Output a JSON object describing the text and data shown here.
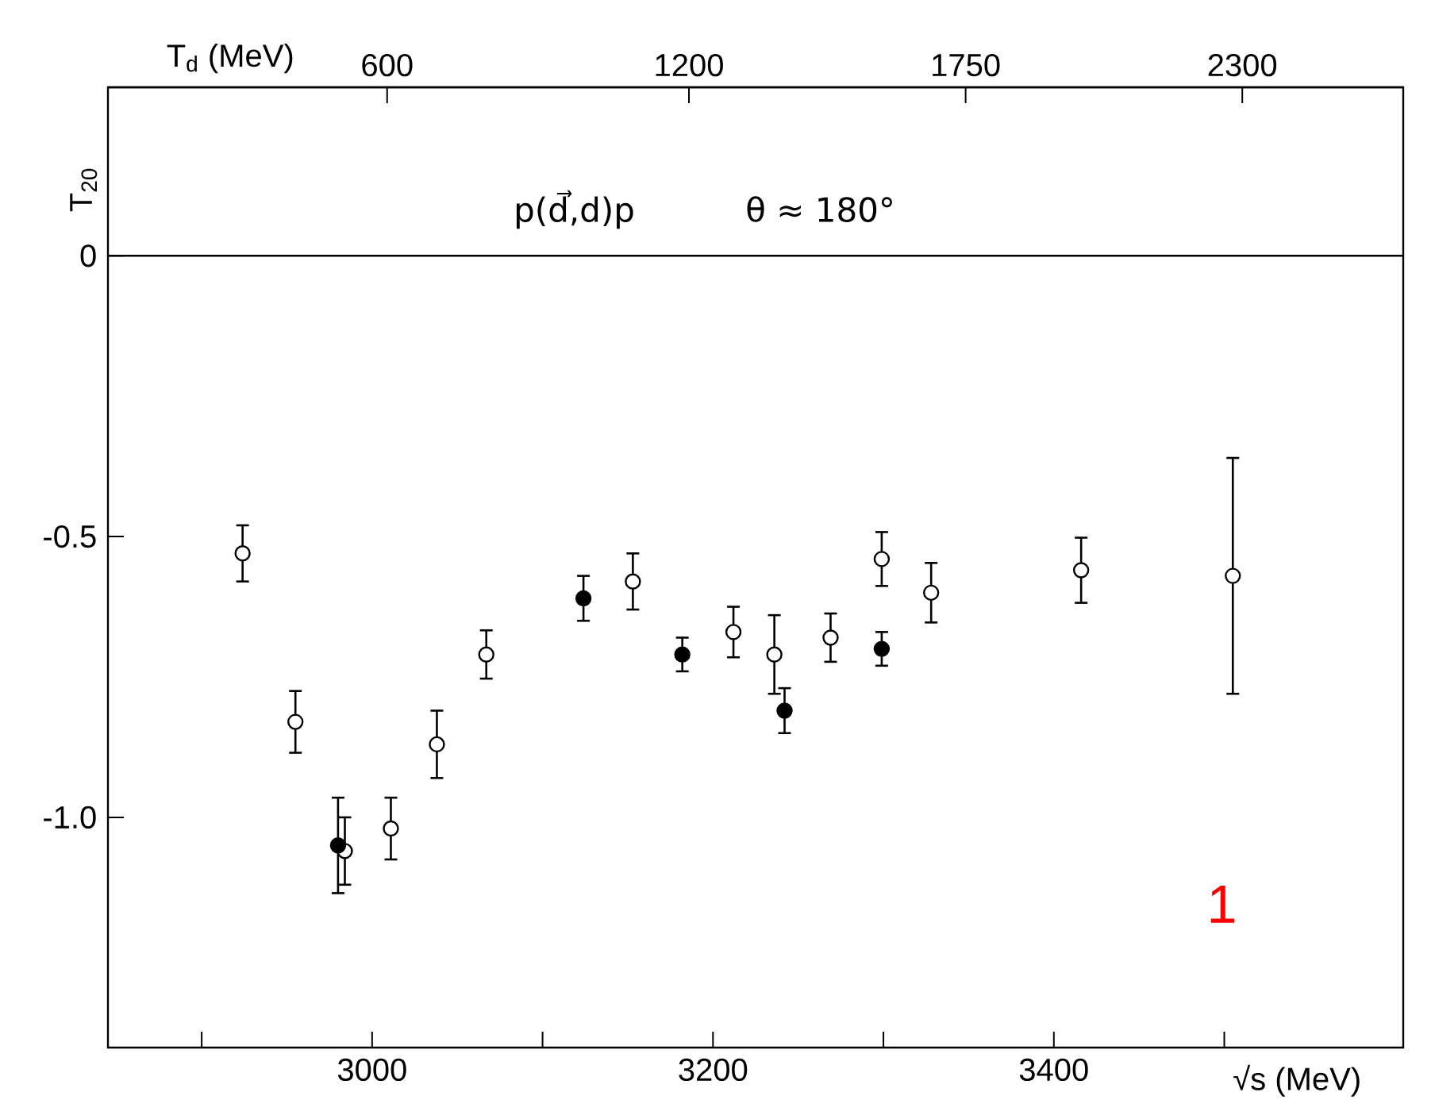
{
  "chart_data": {
    "type": "scatter",
    "title": "p(d⃗,d)p",
    "xlabel": "√s (MeV)",
    "ylabel": "T$_{20}$",
    "x2label": "T$_{d}$ (MeV)",
    "annotations": [
      "θ ≈ 180°",
      "1"
    ],
    "xlim": [
      2845,
      3605
    ],
    "ylim": [
      -1.41,
      0.3
    ],
    "xticks": [
      {
        "value": 2900,
        "label": null
      },
      3000,
      {
        "value": 3100,
        "label": null
      },
      3200,
      {
        "value": 3300,
        "label": null
      },
      3400,
      {
        "value": 3500,
        "label": null
      }
    ],
    "x2lim": [
      45,
      2620
    ],
    "x2ticks": [
      600,
      1200,
      1750,
      2300
    ],
    "yticks": [
      0,
      -0.5,
      {
        "value": -1,
        "label": "-1.0"
      }
    ],
    "ref_lines": [
      {
        "axis": "y",
        "value": 0,
        "color": "#000000"
      }
    ],
    "series": [
      {
        "color": "#000000",
        "x": [
          2924,
          2955,
          2984,
          3011,
          3038,
          3067,
          3153,
          3212,
          3236,
          3269,
          3299,
          3328,
          3416,
          3505
        ],
        "values": [
          -0.53,
          -0.83,
          -1.06,
          -1.02,
          -0.87,
          -0.71,
          -0.58,
          -0.67,
          -0.71,
          -0.68,
          -0.54,
          -0.6,
          -0.56,
          -0.57
        ],
        "errors": [
          0.05,
          0.055,
          0.06,
          0.055,
          0.06,
          0.043,
          0.05,
          0.045,
          0.07,
          0.043,
          0.048,
          0.053,
          0.058,
          0.21
        ]
      },
      {
        "color": "#000000",
        "x": [
          2980,
          3124,
          3182,
          3242,
          3299
        ],
        "values": [
          -1.05,
          -0.61,
          -0.71,
          -0.81,
          -0.7
        ],
        "errors": [
          0.085,
          0.04,
          0.03,
          0.04,
          0.03
        ]
      }
    ]
  }
}
